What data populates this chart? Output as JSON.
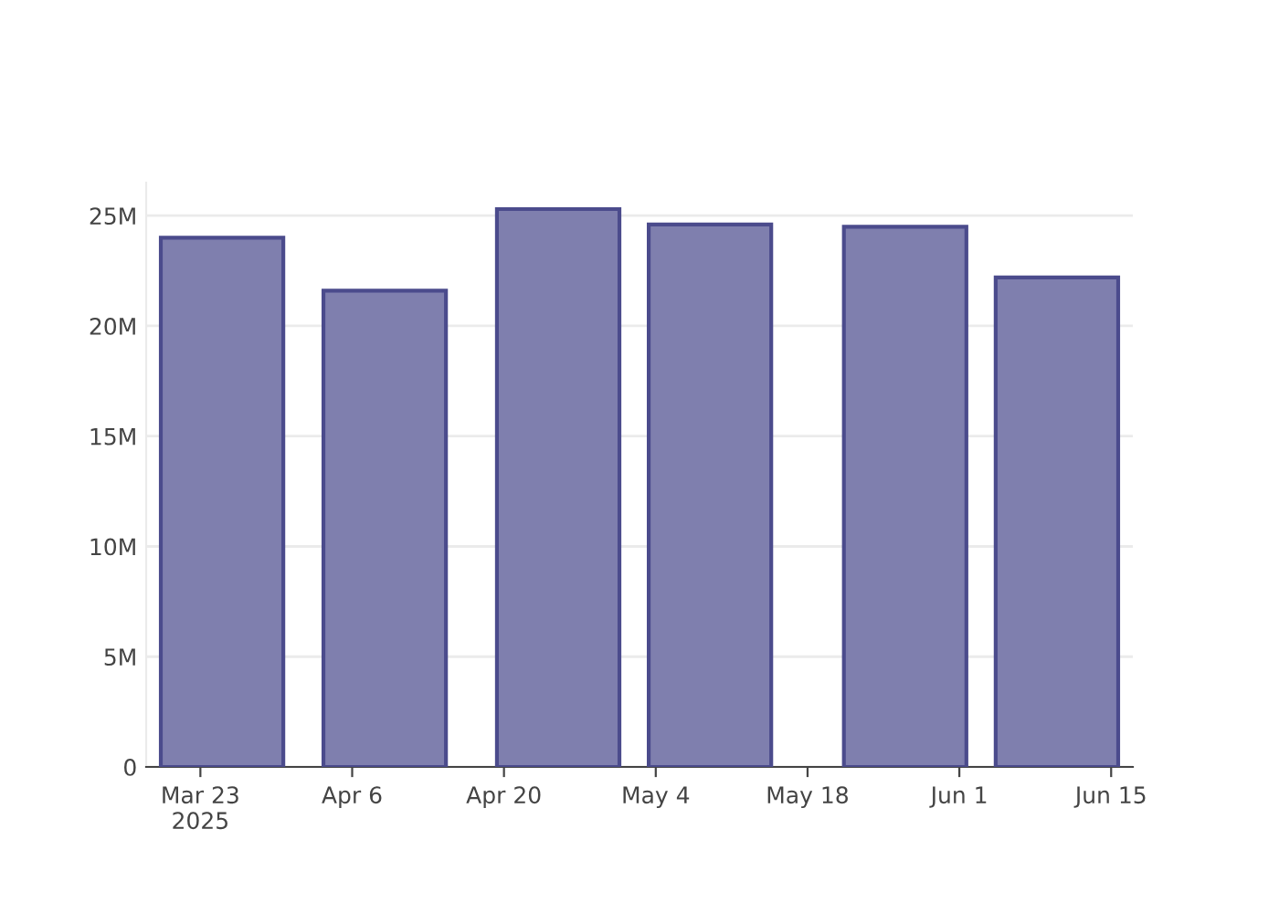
{
  "chart_data": {
    "type": "bar",
    "x": [
      "2025-03-25",
      "2025-04-09",
      "2025-04-25",
      "2025-05-09",
      "2025-05-27",
      "2025-06-10"
    ],
    "values": [
      24000000,
      21600000,
      25300000,
      24600000,
      24500000,
      22200000
    ],
    "color": "#7f7fae",
    "xlim": [
      "2025-03-18",
      "2025-06-17"
    ],
    "ylim": [
      0,
      26500000
    ],
    "xticks": [
      {
        "value": "2025-03-23",
        "label": "Mar 23\n2025"
      },
      {
        "value": "2025-04-06",
        "label": "Apr 6"
      },
      {
        "value": "2025-04-20",
        "label": "Apr 20"
      },
      {
        "value": "2025-05-04",
        "label": "May 4"
      },
      {
        "value": "2025-05-18",
        "label": "May 18"
      },
      {
        "value": "2025-06-01",
        "label": "Jun 1"
      },
      {
        "value": "2025-06-15",
        "label": "Jun 15"
      }
    ],
    "yticks": [
      0,
      {
        "value": 5000000,
        "label": "5M"
      },
      {
        "value": 10000000,
        "label": "10M"
      },
      {
        "value": 15000000,
        "label": "15M"
      },
      {
        "value": 20000000,
        "label": "20M"
      },
      {
        "value": 25000000,
        "label": "25M"
      }
    ],
    "grid": "y"
  }
}
